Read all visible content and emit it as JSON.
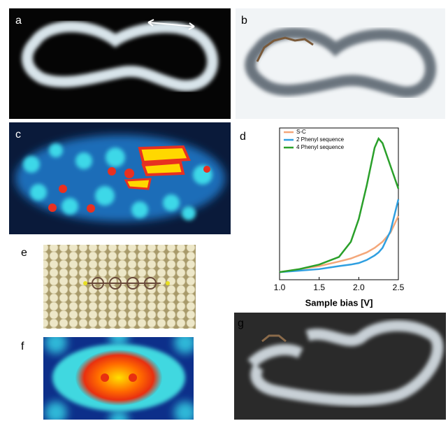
{
  "panels": [
    {
      "label": "a"
    },
    {
      "label": "b"
    },
    {
      "label": "c"
    },
    {
      "label": "d"
    },
    {
      "label": "e"
    },
    {
      "label": "f"
    },
    {
      "label": "g"
    }
  ],
  "chart_data": {
    "type": "line",
    "xlabel": "Sample bias [V]",
    "x": [
      1.0,
      1.25,
      1.5,
      1.75,
      1.9,
      2.0,
      2.1,
      2.2,
      2.25,
      2.3,
      2.4,
      2.5
    ],
    "series": [
      {
        "name": "S-C",
        "color": "#f4a77a",
        "values": [
          0.05,
          0.07,
          0.09,
          0.12,
          0.14,
          0.16,
          0.18,
          0.21,
          0.23,
          0.25,
          0.31,
          0.42
        ]
      },
      {
        "name": "2 Phenyl sequence",
        "color": "#2f9fe0",
        "values": [
          0.05,
          0.06,
          0.07,
          0.09,
          0.1,
          0.11,
          0.13,
          0.16,
          0.18,
          0.21,
          0.32,
          0.53
        ]
      },
      {
        "name": "4 Phenyl sequence",
        "color": "#2aa02a",
        "values": [
          0.05,
          0.07,
          0.1,
          0.15,
          0.25,
          0.4,
          0.62,
          0.87,
          0.93,
          0.9,
          0.75,
          0.6
        ]
      }
    ],
    "xlim": [
      1.0,
      2.5
    ],
    "xticks": [
      {
        "value": 1.0,
        "label": "1.0"
      },
      1.5,
      {
        "value": 2.0,
        "label": "2.0"
      },
      2.5
    ],
    "ylim": [
      0,
      1
    ],
    "legend": "upper-left"
  }
}
